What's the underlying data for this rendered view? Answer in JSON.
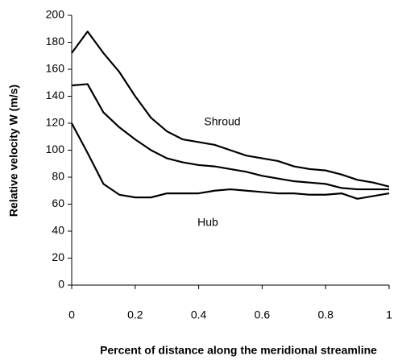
{
  "chart_data": {
    "type": "line",
    "xlabel": "Percent of distance along the meridional streamline",
    "ylabel": "Relative velocity W (m/s)",
    "x": [
      0,
      0.05,
      0.1,
      0.15,
      0.2,
      0.25,
      0.3,
      0.35,
      0.4,
      0.45,
      0.5,
      0.55,
      0.6,
      0.65,
      0.7,
      0.75,
      0.8,
      0.85,
      0.9,
      0.95,
      1
    ],
    "series": [
      {
        "color": "#000000",
        "values": [
          172,
          188,
          172,
          158,
          140,
          124,
          114,
          108,
          106,
          104,
          100,
          96,
          94,
          92,
          88,
          86,
          85,
          82,
          78,
          76,
          73
        ]
      },
      {
        "color": "#000000",
        "values": [
          148,
          149,
          128,
          117,
          108,
          100,
          94,
          91,
          89,
          88,
          86,
          84,
          81,
          79,
          77,
          76,
          75,
          72,
          71,
          71,
          71
        ]
      },
      {
        "color": "#000000",
        "values": [
          120,
          98,
          75,
          67,
          65,
          65,
          68,
          68,
          68,
          70,
          71,
          70,
          69,
          68,
          68,
          67,
          67,
          68,
          64,
          66,
          68
        ]
      }
    ],
    "annotations": [
      "Shroud",
      "Hub"
    ],
    "xlim": [
      0,
      1
    ],
    "xticks": [
      0,
      0.2,
      0.4,
      0.6,
      0.8,
      1
    ],
    "ylim": [
      0,
      200
    ],
    "yticks": [
      0,
      20,
      40,
      60,
      80,
      100,
      120,
      140,
      160,
      180,
      200
    ],
    "grid": false
  }
}
